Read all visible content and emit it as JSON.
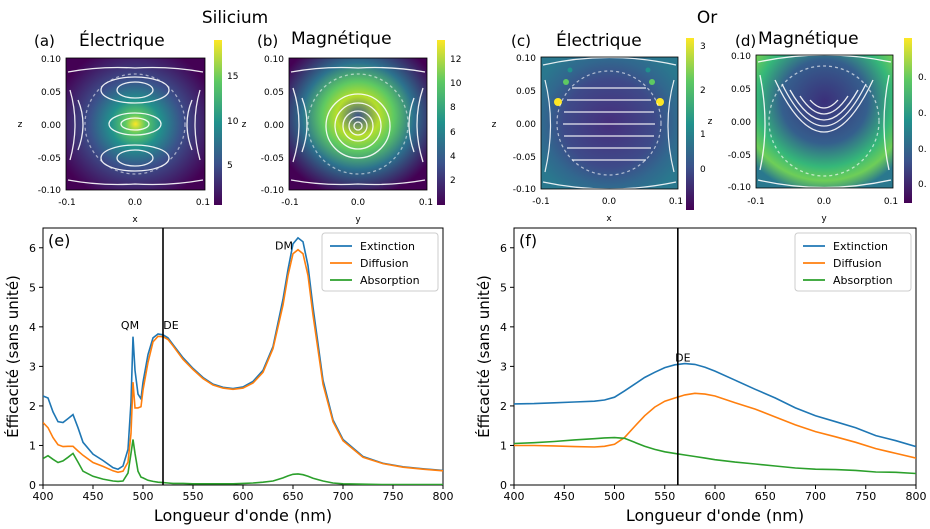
{
  "figure": {
    "group_titles": [
      "Silicium",
      "Or"
    ]
  },
  "field_maps": [
    {
      "label": "(a)",
      "title": "Électrique",
      "xlabel": "x",
      "ylabel": "z",
      "xticks": [
        "-0.1",
        "0.0",
        "0.1"
      ],
      "yticks": [
        "0.10",
        "0.05",
        "0.00",
        "-0.05",
        "-0.10"
      ],
      "colorbar_ticks": [
        "15",
        "10",
        "5"
      ],
      "colorbar_max": 19,
      "colorbar_min": 1
    },
    {
      "label": "(b)",
      "title": "Magnétique",
      "xlabel": "y",
      "ylabel": "z",
      "xticks": [
        "-0.1",
        "0.0",
        "0.1"
      ],
      "yticks": [
        "0.10",
        "0.05",
        "0.00",
        "-0.05",
        "-0.10"
      ],
      "colorbar_ticks": [
        "12",
        "10",
        "8",
        "6",
        "4",
        "2"
      ],
      "colorbar_max": 13.5,
      "colorbar_min": 0.5
    },
    {
      "label": "(c)",
      "title": "Électrique",
      "xlabel": "x",
      "ylabel": "z",
      "xticks": [
        "-0.1",
        "0.0",
        "0.1"
      ],
      "yticks": [
        "0.10",
        "0.05",
        "0.00",
        "-0.05",
        "-0.10"
      ],
      "colorbar_ticks": [
        "3",
        "2",
        "1",
        "0"
      ],
      "colorbar_max": 3.2,
      "colorbar_min": -0.7
    },
    {
      "label": "(d)",
      "title": "Magnétique",
      "xlabel": "y",
      "ylabel": "z",
      "xticks": [
        "-0.1",
        "0.0",
        "0.1"
      ],
      "yticks": [
        "0.10",
        "0.05",
        "0.00",
        "-0.05",
        "-0.10"
      ],
      "colorbar_ticks": [
        "0.",
        "0.",
        "0.",
        "0."
      ],
      "colorbar_max": 1.0,
      "colorbar_min": 0.0
    }
  ],
  "chart_data": [
    {
      "type": "line",
      "panel_label": "(e)",
      "xlabel": "Longueur d'onde (nm)",
      "ylabel": "Éfficacité (sans unité)",
      "xlim": [
        400,
        800
      ],
      "ylim": [
        0,
        6.5
      ],
      "xticks": [
        400,
        450,
        500,
        550,
        600,
        650,
        700,
        750,
        800
      ],
      "yticks": [
        0,
        1,
        2,
        3,
        4,
        5,
        6
      ],
      "legend_position": "top-right",
      "vline_x": 520,
      "annotations": [
        {
          "text": "QM",
          "x": 487,
          "y": 3.95
        },
        {
          "text": "DE",
          "x": 528,
          "y": 3.95
        },
        {
          "text": "DM",
          "x": 641,
          "y": 5.95
        }
      ],
      "series": [
        {
          "name": "Extinction",
          "color": "#1f77b4",
          "x": [
            400,
            405,
            410,
            415,
            420,
            425,
            430,
            435,
            440,
            450,
            460,
            470,
            475,
            480,
            485,
            488,
            490,
            492,
            495,
            498,
            500,
            505,
            510,
            515,
            520,
            525,
            530,
            540,
            550,
            560,
            570,
            580,
            590,
            600,
            610,
            620,
            630,
            640,
            645,
            650,
            655,
            660,
            665,
            670,
            680,
            690,
            700,
            720,
            740,
            760,
            780,
            800
          ],
          "y": [
            2.25,
            2.2,
            1.85,
            1.6,
            1.58,
            1.68,
            1.78,
            1.45,
            1.08,
            0.78,
            0.62,
            0.44,
            0.4,
            0.48,
            0.9,
            2.1,
            3.75,
            2.9,
            2.3,
            2.18,
            2.6,
            3.3,
            3.72,
            3.82,
            3.8,
            3.72,
            3.55,
            3.22,
            2.95,
            2.72,
            2.55,
            2.47,
            2.44,
            2.48,
            2.62,
            2.9,
            3.5,
            4.7,
            5.45,
            6.1,
            6.25,
            6.15,
            5.55,
            4.5,
            2.65,
            1.65,
            1.15,
            0.72,
            0.55,
            0.46,
            0.41,
            0.37
          ]
        },
        {
          "name": "Diffusion",
          "color": "#ff7f0e",
          "x": [
            400,
            405,
            410,
            415,
            420,
            425,
            430,
            435,
            440,
            450,
            460,
            470,
            475,
            480,
            485,
            488,
            490,
            492,
            495,
            498,
            500,
            505,
            510,
            515,
            520,
            525,
            530,
            540,
            550,
            560,
            570,
            580,
            590,
            600,
            610,
            620,
            630,
            640,
            645,
            650,
            655,
            660,
            665,
            670,
            680,
            690,
            700,
            720,
            740,
            760,
            780,
            800
          ],
          "y": [
            1.58,
            1.45,
            1.2,
            1.02,
            0.97,
            0.98,
            0.98,
            0.86,
            0.75,
            0.57,
            0.47,
            0.36,
            0.32,
            0.35,
            0.58,
            1.3,
            2.6,
            1.95,
            1.95,
            1.98,
            2.4,
            3.1,
            3.62,
            3.76,
            3.75,
            3.68,
            3.52,
            3.18,
            2.92,
            2.69,
            2.53,
            2.45,
            2.42,
            2.45,
            2.58,
            2.85,
            3.45,
            4.55,
            5.3,
            5.85,
            5.95,
            5.85,
            5.3,
            4.3,
            2.55,
            1.6,
            1.12,
            0.7,
            0.54,
            0.45,
            0.4,
            0.36
          ]
        },
        {
          "name": "Absorption",
          "color": "#2ca02c",
          "x": [
            400,
            405,
            410,
            415,
            420,
            425,
            430,
            435,
            440,
            450,
            460,
            470,
            475,
            480,
            485,
            488,
            490,
            492,
            495,
            498,
            500,
            505,
            510,
            515,
            520,
            525,
            530,
            540,
            550,
            560,
            570,
            580,
            590,
            600,
            610,
            620,
            630,
            640,
            645,
            650,
            655,
            660,
            665,
            670,
            680,
            690,
            700,
            720,
            740,
            760,
            780,
            800
          ],
          "y": [
            0.67,
            0.74,
            0.65,
            0.57,
            0.61,
            0.7,
            0.8,
            0.58,
            0.35,
            0.22,
            0.15,
            0.1,
            0.09,
            0.1,
            0.3,
            0.8,
            1.15,
            0.8,
            0.35,
            0.2,
            0.18,
            0.12,
            0.09,
            0.07,
            0.06,
            0.05,
            0.04,
            0.04,
            0.03,
            0.03,
            0.03,
            0.03,
            0.03,
            0.04,
            0.05,
            0.07,
            0.1,
            0.18,
            0.23,
            0.27,
            0.28,
            0.26,
            0.22,
            0.17,
            0.1,
            0.05,
            0.03,
            0.02,
            0.01,
            0.01,
            0.01,
            0.01
          ]
        }
      ]
    },
    {
      "type": "line",
      "panel_label": "(f)",
      "xlabel": "Longueur d'onde (nm)",
      "ylabel": "Éfficacité (sans unité)",
      "xlim": [
        400,
        800
      ],
      "ylim": [
        0,
        6.5
      ],
      "xticks": [
        400,
        450,
        500,
        550,
        600,
        650,
        700,
        750,
        800
      ],
      "yticks": [
        0,
        1,
        2,
        3,
        4,
        5,
        6
      ],
      "legend_position": "top-right",
      "vline_x": 563,
      "annotations": [
        {
          "text": "DE",
          "x": 568,
          "y": 3.12
        }
      ],
      "series": [
        {
          "name": "Extinction",
          "color": "#1f77b4",
          "x": [
            400,
            420,
            440,
            460,
            480,
            490,
            500,
            510,
            520,
            530,
            540,
            550,
            560,
            570,
            580,
            590,
            600,
            620,
            640,
            660,
            680,
            700,
            720,
            740,
            760,
            780,
            800
          ],
          "y": [
            2.05,
            2.06,
            2.08,
            2.1,
            2.12,
            2.15,
            2.22,
            2.38,
            2.55,
            2.72,
            2.85,
            2.97,
            3.04,
            3.07,
            3.05,
            2.98,
            2.88,
            2.65,
            2.42,
            2.2,
            1.95,
            1.75,
            1.6,
            1.45,
            1.25,
            1.12,
            0.97
          ]
        },
        {
          "name": "Diffusion",
          "color": "#ff7f0e",
          "x": [
            400,
            420,
            440,
            460,
            480,
            490,
            500,
            510,
            520,
            530,
            540,
            550,
            560,
            570,
            580,
            590,
            600,
            620,
            640,
            660,
            680,
            700,
            720,
            740,
            760,
            780,
            800
          ],
          "y": [
            1.0,
            1.0,
            0.99,
            0.97,
            0.96,
            0.98,
            1.03,
            1.2,
            1.48,
            1.75,
            1.97,
            2.12,
            2.2,
            2.28,
            2.32,
            2.3,
            2.25,
            2.08,
            1.92,
            1.72,
            1.52,
            1.35,
            1.22,
            1.08,
            0.92,
            0.8,
            0.68
          ]
        },
        {
          "name": "Absorption",
          "color": "#2ca02c",
          "x": [
            400,
            420,
            440,
            460,
            480,
            490,
            500,
            510,
            520,
            530,
            540,
            550,
            560,
            570,
            580,
            590,
            600,
            620,
            640,
            660,
            680,
            700,
            720,
            740,
            760,
            780,
            800
          ],
          "y": [
            1.05,
            1.07,
            1.1,
            1.14,
            1.17,
            1.19,
            1.2,
            1.18,
            1.08,
            0.98,
            0.9,
            0.84,
            0.8,
            0.76,
            0.72,
            0.68,
            0.64,
            0.58,
            0.53,
            0.48,
            0.43,
            0.4,
            0.39,
            0.37,
            0.33,
            0.32,
            0.29
          ]
        }
      ]
    }
  ]
}
